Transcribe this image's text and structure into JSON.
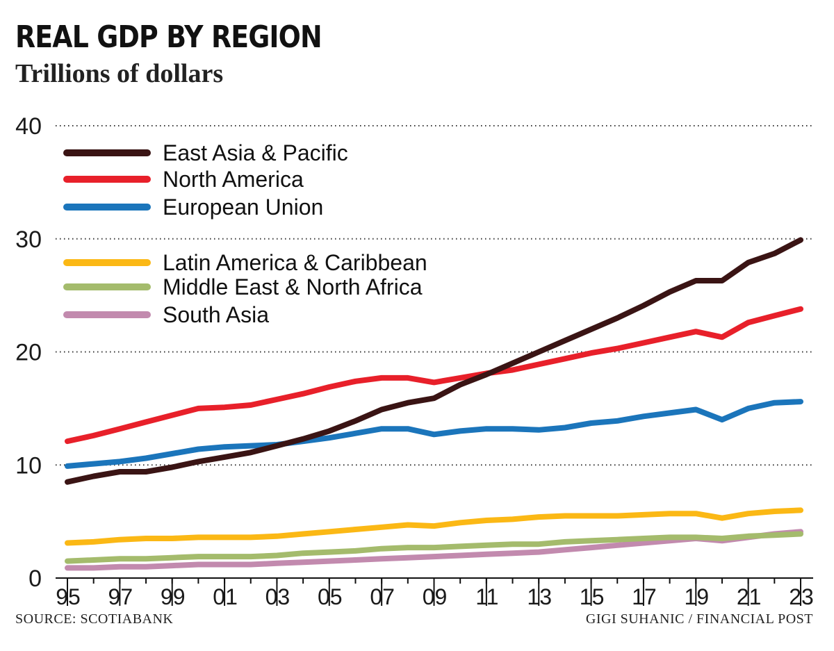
{
  "header": {
    "title": "REAL GDP BY REGION",
    "subtitle": "Trillions of dollars"
  },
  "footer": {
    "source": "SOURCE: SCOTIABANK",
    "credit": "GIGI SUHANIC / FINANCIAL POST"
  },
  "chart_data": {
    "type": "line",
    "title": "REAL GDP BY REGION",
    "subtitle": "Trillions of dollars",
    "xlabel": "",
    "ylabel": "",
    "ylim": [
      0,
      40
    ],
    "yticks": [
      0,
      10,
      20,
      30,
      40
    ],
    "grid": "dotted horizontal",
    "legend": "top-left",
    "x": [
      1995,
      1996,
      1997,
      1998,
      1999,
      2000,
      2001,
      2002,
      2003,
      2004,
      2005,
      2006,
      2007,
      2008,
      2009,
      2010,
      2011,
      2012,
      2013,
      2014,
      2015,
      2016,
      2017,
      2018,
      2019,
      2020,
      2021,
      2022,
      2023
    ],
    "xticks": [
      1995,
      1997,
      1999,
      2001,
      2003,
      2005,
      2007,
      2009,
      2011,
      2013,
      2015,
      2017,
      2019,
      2021,
      2023
    ],
    "xtick_labels": [
      "95",
      "97",
      "99",
      "01",
      "03",
      "05",
      "07",
      "09",
      "11",
      "13",
      "15",
      "17",
      "19",
      "21",
      "23"
    ],
    "series": [
      {
        "name": "East Asia & Pacific",
        "color": "#3a1414",
        "values": [
          8.5,
          9.0,
          9.4,
          9.4,
          9.8,
          10.3,
          10.7,
          11.1,
          11.7,
          12.3,
          13.0,
          13.9,
          14.9,
          15.5,
          15.9,
          17.1,
          18.0,
          19.0,
          20.0,
          21.0,
          22.0,
          23.0,
          24.1,
          25.3,
          26.3,
          26.3,
          27.9,
          28.7,
          29.9
        ]
      },
      {
        "name": "North America",
        "color": "#e8202a",
        "values": [
          12.1,
          12.6,
          13.2,
          13.8,
          14.4,
          15.0,
          15.1,
          15.3,
          15.8,
          16.3,
          16.9,
          17.4,
          17.7,
          17.7,
          17.3,
          17.7,
          18.1,
          18.4,
          18.9,
          19.4,
          19.9,
          20.3,
          20.8,
          21.3,
          21.8,
          21.3,
          22.6,
          23.2,
          23.8
        ]
      },
      {
        "name": "European Union",
        "color": "#1b75bb",
        "values": [
          9.9,
          10.1,
          10.3,
          10.6,
          11.0,
          11.4,
          11.6,
          11.7,
          11.8,
          12.1,
          12.4,
          12.8,
          13.2,
          13.2,
          12.7,
          13.0,
          13.2,
          13.2,
          13.1,
          13.3,
          13.7,
          13.9,
          14.3,
          14.6,
          14.9,
          14.0,
          15.0,
          15.5,
          15.6
        ]
      },
      {
        "name": "Latin America & Caribbean",
        "color": "#fbb815",
        "values": [
          3.1,
          3.2,
          3.4,
          3.5,
          3.5,
          3.6,
          3.6,
          3.6,
          3.7,
          3.9,
          4.1,
          4.3,
          4.5,
          4.7,
          4.6,
          4.9,
          5.1,
          5.2,
          5.4,
          5.5,
          5.5,
          5.5,
          5.6,
          5.7,
          5.7,
          5.3,
          5.7,
          5.9,
          6.0
        ]
      },
      {
        "name": "Middle East & North Africa",
        "color": "#a4bb6c",
        "values": [
          1.5,
          1.6,
          1.7,
          1.7,
          1.8,
          1.9,
          1.9,
          1.9,
          2.0,
          2.2,
          2.3,
          2.4,
          2.6,
          2.7,
          2.7,
          2.8,
          2.9,
          3.0,
          3.0,
          3.2,
          3.3,
          3.4,
          3.5,
          3.6,
          3.6,
          3.5,
          3.7,
          3.8,
          3.9
        ]
      },
      {
        "name": "South Asia",
        "color": "#c28aae",
        "values": [
          0.9,
          0.9,
          1.0,
          1.0,
          1.1,
          1.2,
          1.2,
          1.2,
          1.3,
          1.4,
          1.5,
          1.6,
          1.7,
          1.8,
          1.9,
          2.0,
          2.1,
          2.2,
          2.3,
          2.5,
          2.7,
          2.9,
          3.1,
          3.3,
          3.5,
          3.3,
          3.6,
          3.9,
          4.1
        ]
      }
    ]
  }
}
